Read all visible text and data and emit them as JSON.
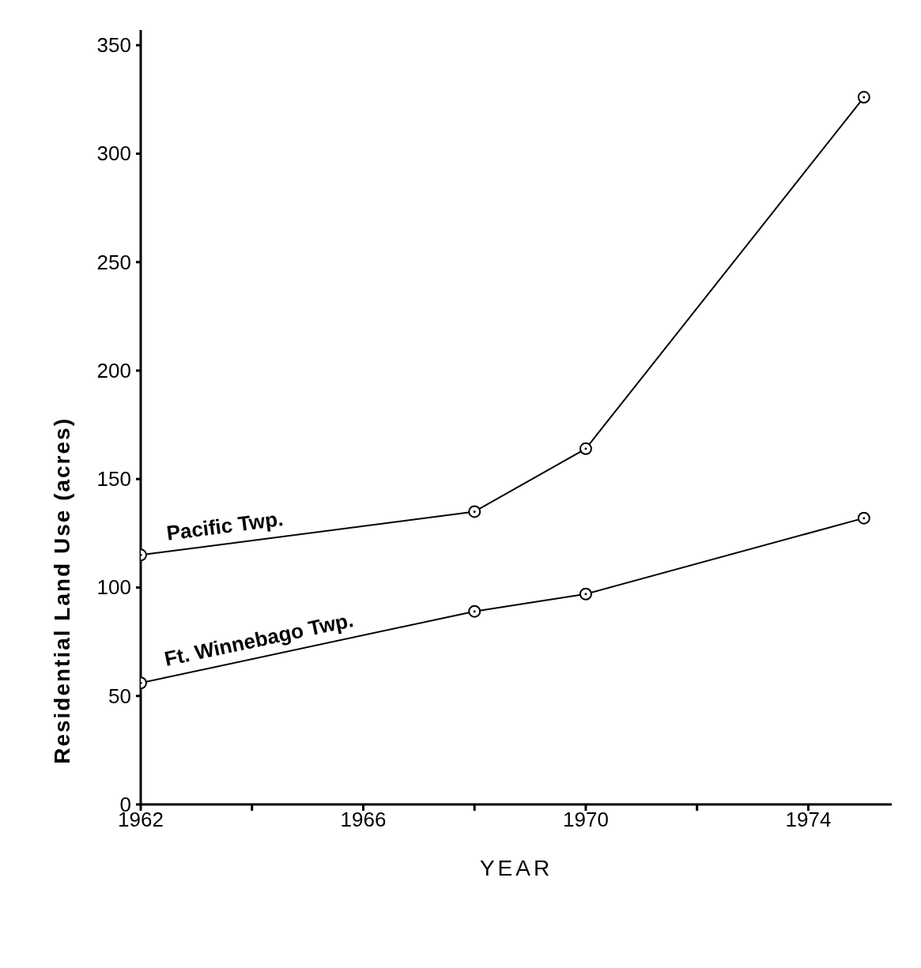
{
  "chart_data": {
    "type": "line",
    "xlabel": "YEAR",
    "ylabel": "Residential Land Use (acres)",
    "x": [
      1962,
      1968,
      1970,
      1975
    ],
    "series": [
      {
        "name": "Pacific Twp.",
        "color": "#000000",
        "values": [
          115,
          135,
          164,
          326
        ]
      },
      {
        "name": "Ft. Winnebago Twp.",
        "color": "#000000",
        "values": [
          56,
          89,
          97,
          132
        ]
      }
    ],
    "xlim": [
      1962,
      1975.5
    ],
    "xticks": [
      1962,
      {
        "value": 1964,
        "label": null
      },
      1966,
      {
        "value": 1968,
        "label": null
      },
      1970,
      {
        "value": 1972,
        "label": null
      },
      1974
    ],
    "ylim": [
      0,
      357
    ],
    "yticks": [
      0,
      50,
      100,
      150,
      200,
      250,
      300,
      350
    ],
    "marker": "circle",
    "line_style": "solid"
  }
}
